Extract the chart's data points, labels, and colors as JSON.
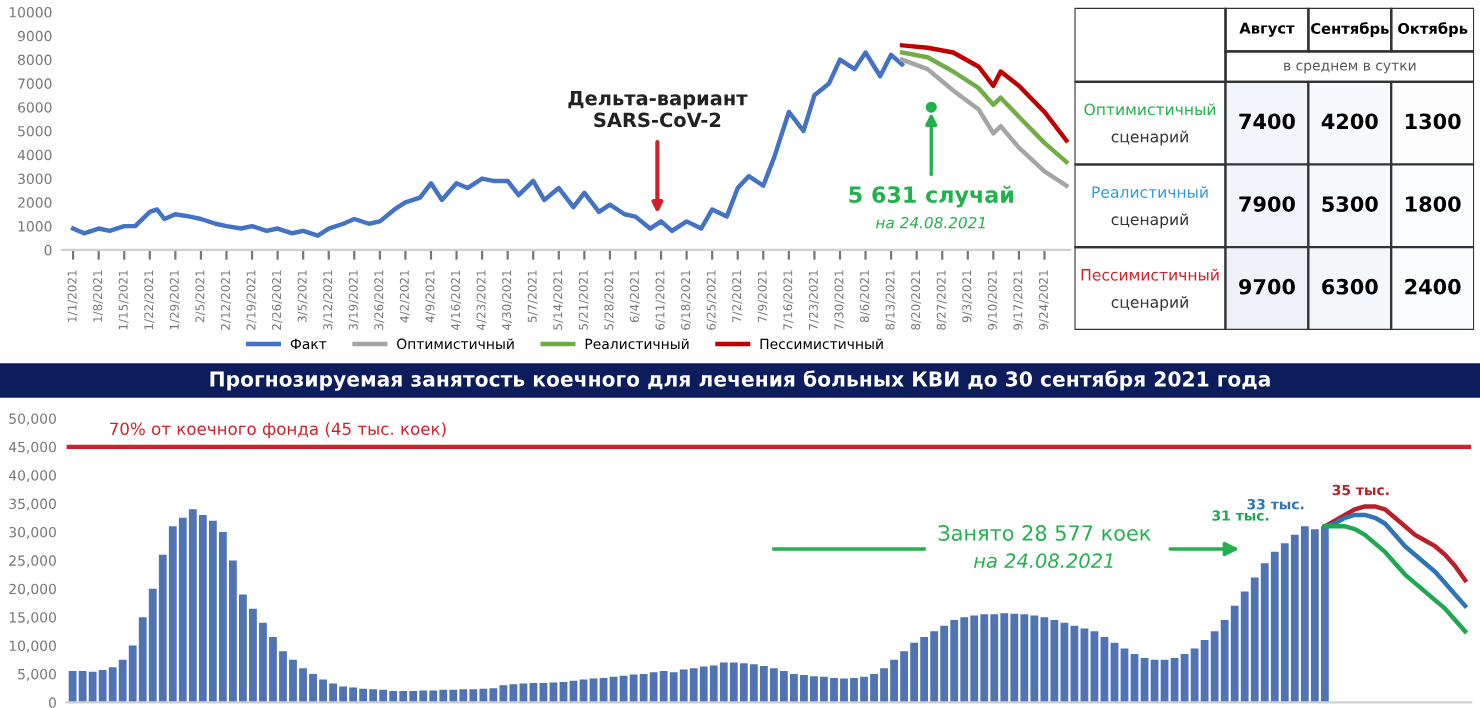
{
  "chart_data": [
    {
      "type": "line",
      "xlim": [
        "2020-12-29",
        "2021-10-01"
      ],
      "ylim": [
        0,
        10000
      ],
      "yticks": [
        0,
        1000,
        2000,
        3000,
        4000,
        5000,
        6000,
        7000,
        8000,
        9000,
        10000
      ],
      "xticks": [
        {
          "value": "2021-01-01",
          "label": "1/1/2021"
        },
        {
          "value": "2021-01-08",
          "label": "1/8/2021"
        },
        {
          "value": "2021-01-15",
          "label": "1/15/2021"
        },
        {
          "value": "2021-01-22",
          "label": "1/22/2021"
        },
        {
          "value": "2021-01-29",
          "label": "1/29/2021"
        },
        {
          "value": "2021-02-05",
          "label": "2/5/2021"
        },
        {
          "value": "2021-02-12",
          "label": "2/12/2021"
        },
        {
          "value": "2021-02-19",
          "label": "2/19/2021"
        },
        {
          "value": "2021-02-26",
          "label": "2/26/2021"
        },
        {
          "value": "2021-03-05",
          "label": "3/5/2021"
        },
        {
          "value": "2021-03-12",
          "label": "3/12/2021"
        },
        {
          "value": "2021-03-19",
          "label": "3/19/2021"
        },
        {
          "value": "2021-03-26",
          "label": "3/26/2021"
        },
        {
          "value": "2021-04-02",
          "label": "4/2/2021"
        },
        {
          "value": "2021-04-09",
          "label": "4/9/2021"
        },
        {
          "value": "2021-04-16",
          "label": "4/16/2021"
        },
        {
          "value": "2021-04-23",
          "label": "4/23/2021"
        },
        {
          "value": "2021-04-30",
          "label": "4/30/2021"
        },
        {
          "value": "2021-05-07",
          "label": "5/7/2021"
        },
        {
          "value": "2021-05-14",
          "label": "5/14/2021"
        },
        {
          "value": "2021-05-21",
          "label": "5/21/2021"
        },
        {
          "value": "2021-05-28",
          "label": "5/28/2021"
        },
        {
          "value": "2021-06-04",
          "label": "6/4/2021"
        },
        {
          "value": "2021-06-11",
          "label": "6/11/2021"
        },
        {
          "value": "2021-06-18",
          "label": "6/18/2021"
        },
        {
          "value": "2021-06-25",
          "label": "6/25/2021"
        },
        {
          "value": "2021-07-02",
          "label": "7/2/2021"
        },
        {
          "value": "2021-07-09",
          "label": "7/9/2021"
        },
        {
          "value": "2021-07-16",
          "label": "7/16/2021"
        },
        {
          "value": "2021-07-23",
          "label": "7/23/2021"
        },
        {
          "value": "2021-07-30",
          "label": "7/30/2021"
        },
        {
          "value": "2021-08-06",
          "label": "8/6/2021"
        },
        {
          "value": "2021-08-13",
          "label": "8/13/2021"
        },
        {
          "value": "2021-08-20",
          "label": "8/20/2021"
        },
        {
          "value": "2021-08-27",
          "label": "8/27/2021"
        },
        {
          "value": "2021-09-03",
          "label": "9/3/2021"
        },
        {
          "value": "2021-09-10",
          "label": "9/10/2021"
        },
        {
          "value": "2021-09-17",
          "label": "9/17/2021"
        },
        {
          "value": "2021-09-24",
          "label": "9/24/2021"
        }
      ],
      "series": [
        {
          "name": "Факт",
          "color": "#4472c4",
          "x": [
            "2021-01-01",
            "2021-01-04",
            "2021-01-08",
            "2021-01-11",
            "2021-01-15",
            "2021-01-18",
            "2021-01-22",
            "2021-01-24",
            "2021-01-26",
            "2021-01-29",
            "2021-02-02",
            "2021-02-05",
            "2021-02-09",
            "2021-02-12",
            "2021-02-16",
            "2021-02-19",
            "2021-02-23",
            "2021-02-26",
            "2021-03-02",
            "2021-03-05",
            "2021-03-09",
            "2021-03-12",
            "2021-03-16",
            "2021-03-19",
            "2021-03-23",
            "2021-03-26",
            "2021-03-30",
            "2021-04-02",
            "2021-04-06",
            "2021-04-09",
            "2021-04-12",
            "2021-04-16",
            "2021-04-19",
            "2021-04-23",
            "2021-04-26",
            "2021-04-30",
            "2021-05-03",
            "2021-05-07",
            "2021-05-10",
            "2021-05-14",
            "2021-05-18",
            "2021-05-21",
            "2021-05-25",
            "2021-05-28",
            "2021-06-01",
            "2021-06-04",
            "2021-06-08",
            "2021-06-11",
            "2021-06-14",
            "2021-06-18",
            "2021-06-22",
            "2021-06-25",
            "2021-06-29",
            "2021-07-02",
            "2021-07-05",
            "2021-07-09",
            "2021-07-12",
            "2021-07-16",
            "2021-07-20",
            "2021-07-23",
            "2021-07-27",
            "2021-07-30",
            "2021-08-03",
            "2021-08-06",
            "2021-08-10",
            "2021-08-13",
            "2021-08-16"
          ],
          "values": [
            900,
            700,
            900,
            800,
            1000,
            1000,
            1600,
            1700,
            1300,
            1500,
            1400,
            1300,
            1100,
            1000,
            900,
            1000,
            800,
            900,
            700,
            800,
            600,
            900,
            1100,
            1300,
            1100,
            1200,
            1700,
            2000,
            2200,
            2800,
            2100,
            2800,
            2600,
            3000,
            2900,
            2900,
            2300,
            2900,
            2100,
            2600,
            1800,
            2400,
            1600,
            1900,
            1500,
            1400,
            900,
            1200,
            800,
            1200,
            900,
            1700,
            1400,
            2600,
            3100,
            2700,
            3900,
            5800,
            5000,
            6500,
            7000,
            8000,
            7600,
            8300,
            7300,
            8200,
            7800
          ]
        },
        {
          "name": "Оптимистичный",
          "color": "#a5a5a5",
          "x": [
            "2021-08-16",
            "2021-08-23",
            "2021-08-30",
            "2021-09-06",
            "2021-09-10",
            "2021-09-12",
            "2021-09-17",
            "2021-09-24",
            "2021-09-30"
          ],
          "values": [
            8000,
            7600,
            6700,
            5900,
            4900,
            5200,
            4300,
            3300,
            2700
          ]
        },
        {
          "name": "Реалистичный",
          "color": "#70ad47",
          "x": [
            "2021-08-16",
            "2021-08-23",
            "2021-08-30",
            "2021-09-06",
            "2021-09-10",
            "2021-09-12",
            "2021-09-17",
            "2021-09-24",
            "2021-09-30"
          ],
          "values": [
            8300,
            8100,
            7500,
            6800,
            6100,
            6400,
            5600,
            4500,
            3700
          ]
        },
        {
          "name": "Пессимистичный",
          "color": "#c00000",
          "x": [
            "2021-08-16",
            "2021-08-23",
            "2021-08-30",
            "2021-09-06",
            "2021-09-10",
            "2021-09-12",
            "2021-09-17",
            "2021-09-24",
            "2021-09-30"
          ],
          "values": [
            8600,
            8500,
            8300,
            7700,
            6900,
            7500,
            6900,
            5800,
            4600
          ]
        }
      ],
      "annotations": [
        {
          "text": "Дельта-вариант\nSARS-CoV-2",
          "x": "2021-06-10",
          "y": 1300
        },
        {
          "text": "5 631 случай",
          "x": "2021-08-24",
          "y": 6000
        },
        "на 24.08.2021"
      ],
      "legend": "bottom",
      "marker": "none",
      "line_style": "solid"
    },
    {
      "type": "heatmap",
      "categories": [
        "Август",
        "Сентябрь",
        "Октябрь"
      ],
      "subtitle": "в среднем в сутки",
      "y_categories": [
        "Оптимистичный сценарий",
        "Реалистичный сценарий",
        "Пессимистичный сценарий"
      ],
      "colors": [
        "#22b14c",
        "#2e9bd6",
        "#d0202a"
      ],
      "cells": [
        [
          7400,
          4200,
          1300
        ],
        [
          7900,
          5300,
          1800
        ],
        [
          9700,
          6300,
          2400
        ]
      ],
      "cell_labels": [
        [
          "7400",
          "4200",
          "1300"
        ],
        [
          "7900",
          "5300",
          "1800"
        ],
        [
          "9700",
          "6300",
          "2400"
        ]
      ]
    },
    {
      "type": "bar",
      "title": "Прогнозируемая занятость коечного для лечения больных КВИ до 30 сентября 2021 года",
      "categories": [
        null,
        null,
        null,
        null,
        null,
        null,
        null,
        null,
        null,
        null,
        null,
        null,
        null,
        null,
        null,
        null,
        null,
        null,
        null,
        null,
        null,
        null,
        null,
        null,
        null,
        null,
        null,
        null,
        null,
        null,
        null,
        null,
        null,
        null,
        null,
        null,
        null,
        null,
        null,
        null,
        null,
        null,
        null,
        null,
        null,
        null,
        null,
        null,
        null,
        null,
        null,
        null,
        null,
        null,
        null,
        null,
        null,
        null,
        null,
        null,
        null,
        null,
        null,
        null,
        null,
        null,
        null,
        null,
        null,
        null,
        null,
        null,
        null,
        null,
        null,
        null,
        null,
        null,
        null,
        null,
        null,
        null,
        null,
        null,
        null,
        null,
        null,
        null,
        null,
        null,
        null,
        null,
        null,
        null,
        null,
        null,
        null,
        null,
        null,
        null,
        null,
        null,
        null,
        null,
        null,
        null,
        null,
        null,
        null,
        null,
        null,
        null,
        null,
        null,
        null,
        null,
        null,
        null,
        null,
        null,
        null,
        null,
        null,
        null,
        null,
        null,
        null,
        null,
        null,
        null,
        null,
        null,
        null,
        null,
        null,
        null,
        null,
        null,
        null,
        null
      ],
      "ylim": [
        0,
        50000
      ],
      "yticks": [
        0,
        {
          "value": 5000,
          "label": "5,000"
        },
        {
          "value": 10000,
          "label": "10,000"
        },
        {
          "value": 15000,
          "label": "15,000"
        },
        {
          "value": 20000,
          "label": "20,000"
        },
        {
          "value": 25000,
          "label": "25,000"
        },
        {
          "value": 30000,
          "label": "30,000"
        },
        {
          "value": 35000,
          "label": "35,000"
        },
        {
          "value": 40000,
          "label": "40,000"
        },
        {
          "value": 45000,
          "label": "45,000"
        },
        {
          "value": 50000,
          "label": "50,000"
        }
      ],
      "tick_labels": "y",
      "series": [
        {
          "color": "#4f73b3",
          "values": [
            5500,
            5500,
            5400,
            5700,
            6200,
            7500,
            10000,
            15000,
            20000,
            26000,
            31000,
            32500,
            34000,
            33000,
            32000,
            30000,
            25000,
            19000,
            16500,
            14000,
            11500,
            9000,
            7500,
            6000,
            5000,
            4000,
            3300,
            2800,
            2600,
            2400,
            2300,
            2200,
            2000,
            2000,
            2000,
            2100,
            2100,
            2200,
            2200,
            2300,
            2300,
            2400,
            2500,
            3000,
            3200,
            3300,
            3400,
            3400,
            3500,
            3600,
            3800,
            4000,
            4200,
            4300,
            4500,
            4700,
            4900,
            5000,
            5300,
            5500,
            5300,
            5800,
            6000,
            6300,
            6500,
            7000,
            7000,
            6900,
            6700,
            6400,
            6000,
            5500,
            5000,
            4800,
            4600,
            4500,
            4300,
            4200,
            4300,
            4500,
            5000,
            6000,
            7500,
            9000,
            10500,
            11500,
            12500,
            13500,
            14500,
            15000,
            15300,
            15500,
            15500,
            15700,
            15600,
            15500,
            15300,
            15000,
            14500,
            14000,
            13500,
            13000,
            12500,
            11500,
            10500,
            9500,
            8500,
            7800,
            7500,
            7500,
            7800,
            8500,
            9500,
            11000,
            12500,
            14500,
            17000,
            19500,
            22000,
            24500,
            26500,
            28000,
            29500,
            31000,
            30500,
            31000,
            null,
            null,
            null,
            null,
            null,
            null,
            null,
            null,
            null,
            null,
            null,
            null,
            null,
            null
          ]
        },
        {
          "type": "line",
          "color": "#b8202a",
          "values": [
            null,
            null,
            null,
            null,
            null,
            null,
            null,
            null,
            null,
            null,
            null,
            null,
            null,
            null,
            null,
            null,
            null,
            null,
            null,
            null,
            null,
            null,
            null,
            null,
            null,
            null,
            null,
            null,
            null,
            null,
            null,
            null,
            null,
            null,
            null,
            null,
            null,
            null,
            null,
            null,
            null,
            null,
            null,
            null,
            null,
            null,
            null,
            null,
            null,
            null,
            null,
            null,
            null,
            null,
            null,
            null,
            null,
            null,
            null,
            null,
            null,
            null,
            null,
            null,
            null,
            null,
            null,
            null,
            null,
            null,
            null,
            null,
            null,
            null,
            null,
            null,
            null,
            null,
            null,
            null,
            null,
            null,
            null,
            null,
            null,
            null,
            null,
            null,
            null,
            null,
            null,
            null,
            null,
            null,
            null,
            null,
            null,
            null,
            null,
            null,
            null,
            null,
            null,
            null,
            null,
            null,
            null,
            null,
            null,
            null,
            null,
            null,
            null,
            null,
            null,
            null,
            null,
            null,
            null,
            null,
            null,
            null,
            null,
            null,
            null,
            31000,
            32000,
            33000,
            34000,
            34500,
            34500,
            34000,
            32500,
            31000,
            29500,
            28500,
            27500,
            26000,
            24000,
            21500
          ]
        },
        {
          "type": "line",
          "color": "#2e75b6",
          "values": [
            null,
            null,
            null,
            null,
            null,
            null,
            null,
            null,
            null,
            null,
            null,
            null,
            null,
            null,
            null,
            null,
            null,
            null,
            null,
            null,
            null,
            null,
            null,
            null,
            null,
            null,
            null,
            null,
            null,
            null,
            null,
            null,
            null,
            null,
            null,
            null,
            null,
            null,
            null,
            null,
            null,
            null,
            null,
            null,
            null,
            null,
            null,
            null,
            null,
            null,
            null,
            null,
            null,
            null,
            null,
            null,
            null,
            null,
            null,
            null,
            null,
            null,
            null,
            null,
            null,
            null,
            null,
            null,
            null,
            null,
            null,
            null,
            null,
            null,
            null,
            null,
            null,
            null,
            null,
            null,
            null,
            null,
            null,
            null,
            null,
            null,
            null,
            null,
            null,
            null,
            null,
            null,
            null,
            null,
            null,
            null,
            null,
            null,
            null,
            null,
            null,
            null,
            null,
            null,
            null,
            null,
            null,
            null,
            null,
            null,
            null,
            null,
            null,
            null,
            null,
            null,
            null,
            null,
            null,
            null,
            null,
            null,
            null,
            null,
            null,
            31000,
            31500,
            32500,
            33000,
            33000,
            32500,
            31500,
            29500,
            27500,
            26000,
            24500,
            23000,
            21000,
            19000,
            17000
          ]
        },
        {
          "type": "line",
          "color": "#1fa84f",
          "values": [
            null,
            null,
            null,
            null,
            null,
            null,
            null,
            null,
            null,
            null,
            null,
            null,
            null,
            null,
            null,
            null,
            null,
            null,
            null,
            null,
            null,
            null,
            null,
            null,
            null,
            null,
            null,
            null,
            null,
            null,
            null,
            null,
            null,
            null,
            null,
            null,
            null,
            null,
            null,
            null,
            null,
            null,
            null,
            null,
            null,
            null,
            null,
            null,
            null,
            null,
            null,
            null,
            null,
            null,
            null,
            null,
            null,
            null,
            null,
            null,
            null,
            null,
            null,
            null,
            null,
            null,
            null,
            null,
            null,
            null,
            null,
            null,
            null,
            null,
            null,
            null,
            null,
            null,
            null,
            null,
            null,
            null,
            null,
            null,
            null,
            null,
            null,
            null,
            null,
            null,
            null,
            null,
            null,
            null,
            null,
            null,
            null,
            null,
            null,
            null,
            null,
            null,
            null,
            null,
            null,
            null,
            null,
            null,
            null,
            null,
            null,
            null,
            null,
            null,
            null,
            null,
            null,
            null,
            null,
            null,
            null,
            null,
            null,
            null,
            null,
            31000,
            31000,
            31000,
            30500,
            29500,
            28000,
            26500,
            24500,
            22500,
            21000,
            19500,
            18000,
            16500,
            14500,
            12500
          ]
        }
      ],
      "ref_lines": [
        {
          "axis": "y",
          "value": 45000,
          "label": "70% от коечного фонда (45 тыс. коек)",
          "color": "#d0202a"
        }
      ],
      "annotations": [
        "35 тыс.",
        "33 тыс.",
        "31 тыс.",
        "Занято 28 577 коек",
        "на 24.08.2021"
      ],
      "marker": "none",
      "line_style": "solid"
    }
  ]
}
